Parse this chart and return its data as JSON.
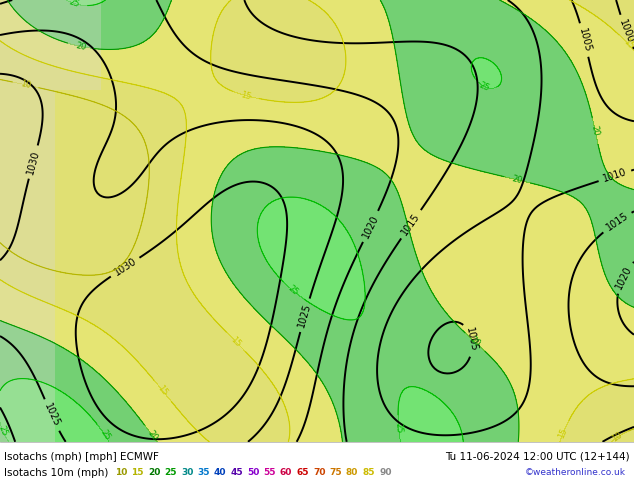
{
  "title_left": "Isotachs (mph) [mph] ECMWF",
  "title_right": "Tu 11-06-2024 12:00 UTC (12+144)",
  "legend_label": "Isotachs 10m (mph)",
  "legend_values": [
    10,
    15,
    20,
    25,
    30,
    35,
    40,
    45,
    50,
    55,
    60,
    65,
    70,
    75,
    80,
    85,
    90
  ],
  "legend_colors": [
    "#b4b400",
    "#c8c800",
    "#00aa00",
    "#00c800",
    "#00b4b4",
    "#0096ff",
    "#0050ff",
    "#6400c8",
    "#aa00ff",
    "#ff00c8",
    "#ff0064",
    "#ff0000",
    "#ff6400",
    "#ff9600",
    "#ffc800",
    "#ffe600",
    "#cccccc"
  ],
  "copyright": "©weatheronline.co.uk",
  "bg_color": "#ffffff",
  "fig_width": 6.34,
  "fig_height": 4.9,
  "dpi": 100,
  "map_green": "#b4d4a0",
  "map_gray": "#c8c8c8",
  "map_light": "#e8e8e0",
  "sea_color": "#d8e8d0"
}
